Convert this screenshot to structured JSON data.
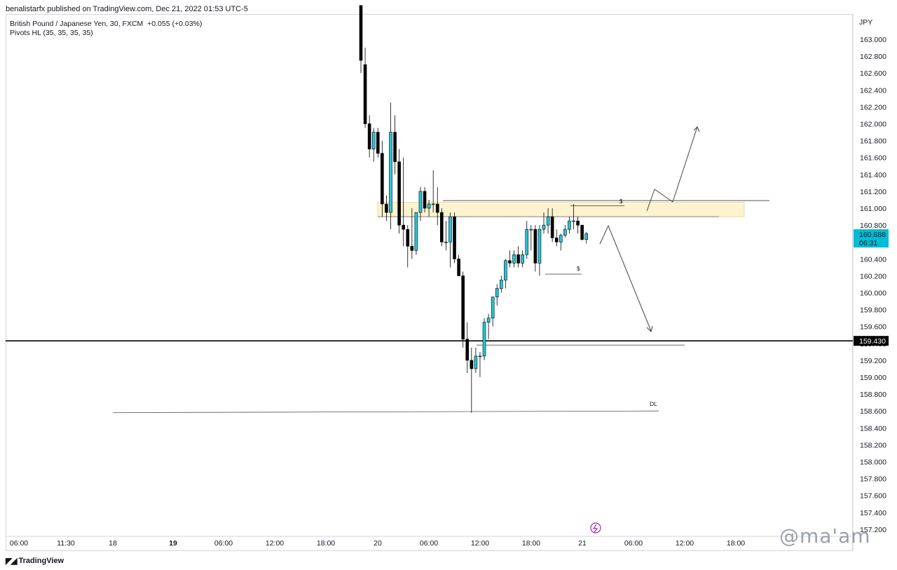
{
  "header": {
    "published": "benalistarfx published on TradingView.com, Dec 21, 2022 01:53 UTC-5"
  },
  "legend": {
    "symbol": "British Pound / Japanese Yen, 30, FXCM",
    "change": "+0.055 (+0.03%)",
    "indicator": "Pivots HL (35, 35, 35, 35)"
  },
  "footer": {
    "brand": "TradingView"
  },
  "watermark": "@ma'am",
  "colors": {
    "up": "#26c6da",
    "down": "#000000",
    "zone_fill": "#fdf3d0",
    "zone_stroke": "#000000",
    "price_tag": "#00bcd4"
  },
  "chart_data": {
    "type": "candlestick",
    "symbol": "GBPJPY",
    "timeframe": "30",
    "currency_label": "JPY",
    "ylim": [
      157.2,
      163.4
    ],
    "y_ticks": [
      "163.000",
      "162.800",
      "162.600",
      "162.400",
      "162.200",
      "162.000",
      "161.800",
      "161.600",
      "161.400",
      "161.200",
      "161.000",
      "160.800",
      "160.600",
      "160.400",
      "160.200",
      "160.000",
      "159.800",
      "159.600",
      "159.400",
      "159.200",
      "159.000",
      "158.800",
      "158.600",
      "158.400",
      "158.200",
      "158.000",
      "157.800",
      "157.600",
      "157.400",
      "157.200"
    ],
    "x_ticks": [
      {
        "label": "06:00",
        "bold": false
      },
      {
        "label": "11:30",
        "bold": false
      },
      {
        "label": "18",
        "bold": false
      },
      {
        "label": "19",
        "bold": true
      },
      {
        "label": "06:00",
        "bold": false
      },
      {
        "label": "12:00",
        "bold": false
      },
      {
        "label": "18:00",
        "bold": false
      },
      {
        "label": "20",
        "bold": false
      },
      {
        "label": "06:00",
        "bold": false
      },
      {
        "label": "12:00",
        "bold": false
      },
      {
        "label": "18:00",
        "bold": false
      },
      {
        "label": "21",
        "bold": false
      },
      {
        "label": "06:00",
        "bold": false
      },
      {
        "label": "12:00",
        "bold": false
      },
      {
        "label": "18:00",
        "bold": false
      }
    ],
    "last_price": "160.688",
    "countdown": "06:31",
    "level_line": {
      "value": 159.43,
      "label": "159.430"
    },
    "candles": [
      {
        "o": 163.4,
        "h": 163.4,
        "l": 162.6,
        "c": 162.75
      },
      {
        "o": 162.7,
        "h": 162.9,
        "l": 161.95,
        "c": 162.0
      },
      {
        "o": 162.0,
        "h": 162.1,
        "l": 161.6,
        "c": 161.7
      },
      {
        "o": 161.7,
        "h": 161.95,
        "l": 161.55,
        "c": 161.9
      },
      {
        "o": 161.9,
        "h": 161.95,
        "l": 161.6,
        "c": 161.65
      },
      {
        "o": 161.65,
        "h": 161.8,
        "l": 160.9,
        "c": 161.05
      },
      {
        "o": 161.05,
        "h": 161.15,
        "l": 160.85,
        "c": 160.95
      },
      {
        "o": 160.95,
        "h": 162.25,
        "l": 160.75,
        "c": 161.9
      },
      {
        "o": 161.9,
        "h": 162.1,
        "l": 161.4,
        "c": 161.55
      },
      {
        "o": 161.55,
        "h": 161.7,
        "l": 160.7,
        "c": 160.8
      },
      {
        "o": 160.8,
        "h": 161.6,
        "l": 160.55,
        "c": 160.75
      },
      {
        "o": 160.75,
        "h": 160.8,
        "l": 160.3,
        "c": 160.55
      },
      {
        "o": 160.55,
        "h": 161.0,
        "l": 160.4,
        "c": 160.5
      },
      {
        "o": 160.5,
        "h": 160.95,
        "l": 160.45,
        "c": 160.95
      },
      {
        "o": 160.95,
        "h": 161.25,
        "l": 160.85,
        "c": 161.2
      },
      {
        "o": 161.2,
        "h": 161.25,
        "l": 160.95,
        "c": 161.0
      },
      {
        "o": 161.0,
        "h": 161.1,
        "l": 160.9,
        "c": 161.05
      },
      {
        "o": 161.05,
        "h": 161.45,
        "l": 160.95,
        "c": 161.05
      },
      {
        "o": 161.05,
        "h": 161.25,
        "l": 160.8,
        "c": 160.95
      },
      {
        "o": 160.95,
        "h": 161.0,
        "l": 160.55,
        "c": 160.6
      },
      {
        "o": 160.6,
        "h": 160.85,
        "l": 160.5,
        "c": 160.6
      },
      {
        "o": 160.6,
        "h": 160.95,
        "l": 160.3,
        "c": 160.9
      },
      {
        "o": 160.9,
        "h": 160.95,
        "l": 160.35,
        "c": 160.4
      },
      {
        "o": 160.4,
        "h": 160.45,
        "l": 160.2,
        "c": 160.2
      },
      {
        "o": 160.2,
        "h": 160.25,
        "l": 159.35,
        "c": 159.45
      },
      {
        "o": 159.45,
        "h": 159.65,
        "l": 159.05,
        "c": 159.2
      },
      {
        "o": 159.2,
        "h": 159.35,
        "l": 158.58,
        "c": 159.1
      },
      {
        "o": 159.1,
        "h": 159.35,
        "l": 159.05,
        "c": 159.25
      },
      {
        "o": 159.25,
        "h": 159.3,
        "l": 159.0,
        "c": 159.25
      },
      {
        "o": 159.25,
        "h": 159.7,
        "l": 159.2,
        "c": 159.65
      },
      {
        "o": 159.65,
        "h": 159.75,
        "l": 159.45,
        "c": 159.7
      },
      {
        "o": 159.7,
        "h": 159.95,
        "l": 159.6,
        "c": 159.95
      },
      {
        "o": 159.95,
        "h": 160.1,
        "l": 159.85,
        "c": 160.05
      },
      {
        "o": 160.05,
        "h": 160.2,
        "l": 160.0,
        "c": 160.15
      },
      {
        "o": 160.15,
        "h": 160.4,
        "l": 160.05,
        "c": 160.38
      },
      {
        "o": 160.38,
        "h": 160.5,
        "l": 160.3,
        "c": 160.35
      },
      {
        "o": 160.35,
        "h": 160.5,
        "l": 160.3,
        "c": 160.45
      },
      {
        "o": 160.45,
        "h": 160.55,
        "l": 160.3,
        "c": 160.35
      },
      {
        "o": 160.35,
        "h": 160.5,
        "l": 160.3,
        "c": 160.45
      },
      {
        "o": 160.45,
        "h": 160.85,
        "l": 160.4,
        "c": 160.75
      },
      {
        "o": 160.75,
        "h": 160.8,
        "l": 160.5,
        "c": 160.75
      },
      {
        "o": 160.75,
        "h": 160.8,
        "l": 160.25,
        "c": 160.35
      },
      {
        "o": 160.35,
        "h": 160.8,
        "l": 160.2,
        "c": 160.75
      },
      {
        "o": 160.75,
        "h": 160.95,
        "l": 160.7,
        "c": 160.8
      },
      {
        "o": 160.8,
        "h": 161.0,
        "l": 160.7,
        "c": 160.9
      },
      {
        "o": 160.9,
        "h": 161.0,
        "l": 160.6,
        "c": 160.65
      },
      {
        "o": 160.65,
        "h": 160.75,
        "l": 160.55,
        "c": 160.6
      },
      {
        "o": 160.6,
        "h": 160.7,
        "l": 160.5,
        "c": 160.68
      },
      {
        "o": 160.68,
        "h": 160.8,
        "l": 160.65,
        "c": 160.75
      },
      {
        "o": 160.75,
        "h": 160.9,
        "l": 160.7,
        "c": 160.85
      },
      {
        "o": 160.85,
        "h": 161.05,
        "l": 160.75,
        "c": 160.85
      },
      {
        "o": 160.85,
        "h": 160.9,
        "l": 160.7,
        "c": 160.8
      },
      {
        "o": 160.8,
        "h": 160.8,
        "l": 160.62,
        "c": 160.63
      },
      {
        "o": 160.63,
        "h": 160.72,
        "l": 160.58,
        "c": 160.7
      }
    ],
    "annotations": {
      "zone": {
        "top": 161.07,
        "bottom": 160.9
      },
      "liquidity_labels": [
        "$",
        "$"
      ],
      "dl_label": "DL"
    }
  }
}
